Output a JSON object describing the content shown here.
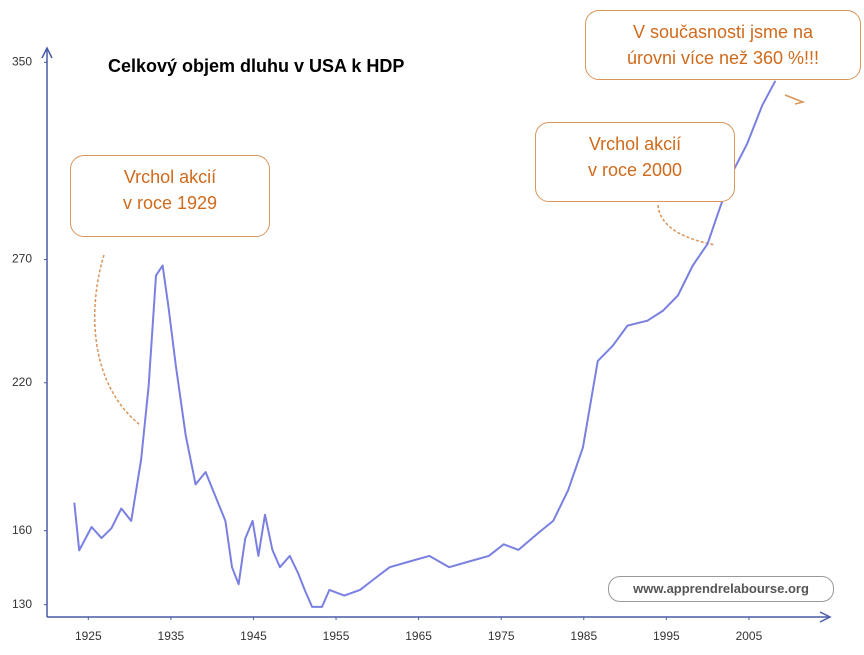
{
  "chart_data": {
    "type": "line",
    "title": "Celkový objem dluhu v USA k HDP",
    "watermark": "www.apprendrelabourse.org",
    "annotations": [
      [
        "Vrchol akcií",
        "v roce 1929"
      ],
      [
        "Vrchol akcií",
        "v roce 2000"
      ],
      [
        "V současnosti jsme na",
        "úrovni více než 360 %!!!"
      ]
    ],
    "xlim": [
      1920,
      2013
    ],
    "xticks": [
      1925,
      1935,
      1945,
      1955,
      1965,
      1975,
      1985,
      1995,
      2005
    ],
    "ylim": [
      125,
      355
    ],
    "yticks": [
      130,
      160,
      220,
      270,
      350
    ],
    "series": [
      {
        "color": "#7a80e0",
        "x": [
          1923.3,
          1923.9,
          1925.4,
          1926.6,
          1927.8,
          1929,
          1930.2,
          1931.4,
          1932.3,
          1933.2,
          1934,
          1934.7,
          1935.6,
          1936.8,
          1938,
          1939.2,
          1940.4,
          1941.6,
          1942.4,
          1943.2,
          1944,
          1944.9,
          1945.6,
          1946.4,
          1947.3,
          1948.2,
          1949.4,
          1950.4,
          1951.2,
          1952.1,
          1953.3,
          1954.2,
          1956,
          1957.9,
          1959.7,
          1961.5,
          1963.9,
          1966.3,
          1968.7,
          1971.1,
          1973.5,
          1975.3,
          1977.1,
          1979.5,
          1981.3,
          1983.1,
          1984.9,
          1986.7,
          1988.5,
          1990.3,
          1992.7,
          1994.6,
          1996.4,
          1998.2,
          2000,
          2001.2,
          2003,
          2004.8,
          2006.6,
          2008.2
        ],
        "values": [
          171.4,
          152,
          161.5,
          157,
          161,
          169,
          164,
          188.8,
          218.5,
          263.5,
          267.6,
          251,
          227,
          198.7,
          178.8,
          183.8,
          173.9,
          164,
          145.2,
          138.3,
          156.8,
          164,
          149.8,
          166.5,
          152.2,
          145.2,
          149.8,
          142.9,
          136,
          129.1,
          129.1,
          136,
          133.7,
          136,
          140.6,
          145.2,
          147.5,
          149.8,
          145.2,
          147.5,
          149.8,
          154.5,
          152.2,
          159.1,
          164,
          176.4,
          193.7,
          228.9,
          235,
          243.2,
          245.2,
          249.3,
          255.4,
          267.6,
          276.4,
          288.3,
          305.3,
          317.1,
          332.4,
          342.5
        ]
      }
    ]
  }
}
